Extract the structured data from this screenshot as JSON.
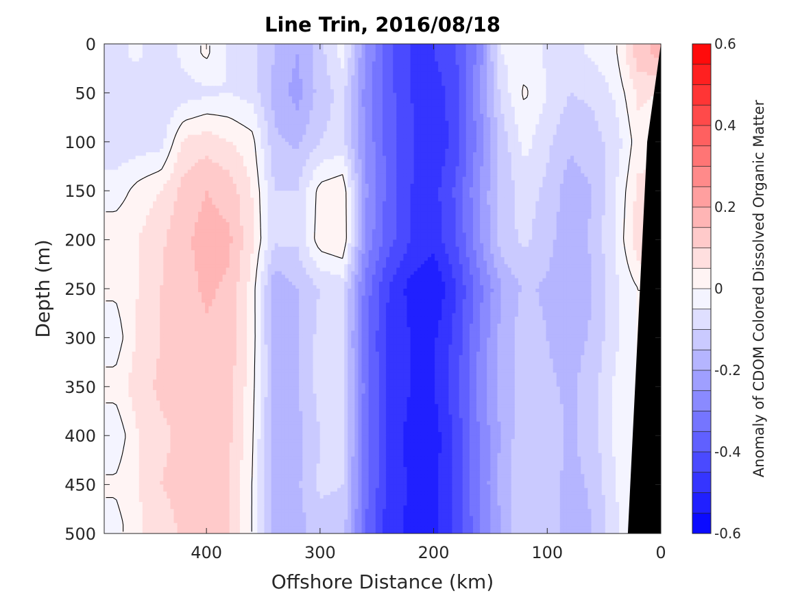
{
  "chart_data": {
    "type": "heatmap",
    "title": "Line Trin, 2016/08/18",
    "xlabel": "Offshore Distance (km)",
    "ylabel": "Depth (m)",
    "xlim": [
      490,
      0
    ],
    "x_reversed": true,
    "ylim": [
      0,
      500
    ],
    "y_reversed": true,
    "x_ticks": [
      400,
      300,
      200,
      100,
      0
    ],
    "x_tick_labels": [
      "400",
      "300",
      "200",
      "100",
      "0"
    ],
    "y_ticks": [
      0,
      50,
      100,
      150,
      200,
      250,
      300,
      350,
      400,
      450,
      500
    ],
    "y_tick_labels": [
      "0",
      "50",
      "100",
      "150",
      "200",
      "250",
      "300",
      "350",
      "400",
      "450",
      "500"
    ],
    "colorbar": {
      "label": "Anomaly of CDOM Colored Dissolved Organic Matter",
      "range": [
        -0.6,
        0.6
      ],
      "ticks": [
        0.6,
        0.4,
        0.2,
        0,
        -0.2,
        -0.4,
        -0.6
      ],
      "tick_labels": [
        "0.6",
        "0.4",
        "0.2",
        "0",
        "-0.2",
        "-0.4",
        "-0.6"
      ],
      "levels": 24,
      "colormap": "blue-white-red"
    },
    "zero_contour_color": "#000000",
    "bottom_mask_color": "#000000",
    "x_samples_km": [
      480,
      460,
      440,
      420,
      400,
      380,
      360,
      340,
      320,
      300,
      280,
      260,
      240,
      220,
      200,
      180,
      160,
      140,
      120,
      100,
      80,
      60,
      40,
      20,
      5
    ],
    "depth_samples_m": [
      10,
      50,
      100,
      150,
      200,
      250,
      300,
      350,
      400,
      450,
      490
    ],
    "anomaly_grid": [
      [
        -0.06,
        -0.04,
        -0.1,
        -0.03,
        0.01,
        -0.06,
        -0.08,
        -0.15,
        -0.2,
        -0.12,
        -0.03,
        -0.25,
        -0.38,
        -0.45,
        -0.45,
        -0.4,
        -0.28,
        -0.05,
        -0.02,
        -0.06,
        -0.07,
        -0.04,
        -0.01,
        0.13,
        0.16
      ],
      [
        -0.07,
        -0.08,
        -0.1,
        -0.08,
        -0.06,
        -0.05,
        -0.07,
        -0.17,
        -0.22,
        -0.13,
        -0.08,
        -0.27,
        -0.38,
        -0.45,
        -0.48,
        -0.42,
        -0.26,
        -0.08,
        0.01,
        -0.05,
        -0.1,
        -0.09,
        -0.04,
        0.06,
        0.05
      ],
      [
        -0.08,
        -0.08,
        -0.07,
        0.06,
        0.08,
        0.05,
        0.02,
        -0.14,
        -0.16,
        -0.1,
        -0.08,
        -0.26,
        -0.37,
        -0.44,
        -0.5,
        -0.42,
        -0.28,
        -0.13,
        -0.03,
        -0.09,
        -0.14,
        -0.12,
        -0.08,
        0.03,
        0.03
      ],
      [
        -0.03,
        0.02,
        0.05,
        0.12,
        0.15,
        0.13,
        0.05,
        -0.1,
        -0.1,
        0.02,
        0.04,
        -0.24,
        -0.37,
        -0.45,
        -0.47,
        -0.39,
        -0.25,
        -0.13,
        -0.08,
        -0.11,
        -0.18,
        -0.15,
        -0.05,
        0.06,
        0.07
      ],
      [
        0.04,
        0.05,
        0.09,
        0.14,
        0.17,
        0.16,
        0.06,
        -0.09,
        -0.09,
        0.03,
        0.05,
        -0.26,
        -0.38,
        -0.45,
        -0.48,
        -0.4,
        -0.26,
        -0.12,
        -0.09,
        -0.13,
        -0.19,
        -0.14,
        -0.05,
        0.09,
        0.11
      ],
      [
        0.01,
        0.05,
        0.1,
        0.13,
        0.16,
        0.14,
        0.03,
        -0.19,
        -0.15,
        -0.1,
        -0.08,
        -0.32,
        -0.45,
        -0.52,
        -0.55,
        -0.45,
        -0.32,
        -0.2,
        -0.14,
        -0.16,
        -0.2,
        -0.15,
        -0.06,
        0.0,
        0.0
      ],
      [
        -0.03,
        0.06,
        0.1,
        0.12,
        0.14,
        0.13,
        0.03,
        -0.18,
        -0.16,
        -0.08,
        -0.09,
        -0.34,
        -0.46,
        -0.5,
        -0.51,
        -0.43,
        -0.3,
        -0.18,
        -0.12,
        -0.15,
        -0.18,
        -0.14,
        -0.06,
        0.0,
        0.0
      ],
      [
        0.02,
        0.08,
        0.11,
        0.12,
        0.14,
        0.12,
        0.02,
        -0.17,
        -0.15,
        -0.08,
        -0.09,
        -0.32,
        -0.46,
        -0.5,
        -0.5,
        -0.42,
        -0.28,
        -0.18,
        -0.13,
        -0.14,
        -0.16,
        -0.12,
        -0.04,
        0.0,
        0.0
      ],
      [
        -0.04,
        0.05,
        0.09,
        0.11,
        0.14,
        0.11,
        0.01,
        -0.18,
        -0.17,
        -0.1,
        -0.09,
        -0.33,
        -0.46,
        -0.52,
        -0.53,
        -0.43,
        -0.3,
        -0.19,
        -0.11,
        -0.12,
        -0.16,
        -0.12,
        -0.04,
        0.0,
        0.0
      ],
      [
        0.01,
        0.05,
        0.1,
        0.12,
        0.14,
        0.1,
        0.0,
        -0.17,
        -0.16,
        -0.09,
        -0.1,
        -0.33,
        -0.46,
        -0.51,
        -0.52,
        -0.43,
        -0.3,
        -0.18,
        -0.1,
        -0.12,
        -0.17,
        -0.14,
        -0.05,
        0.0,
        0.0
      ],
      [
        -0.02,
        0.04,
        0.08,
        0.11,
        0.13,
        0.1,
        0.0,
        -0.18,
        -0.17,
        -0.12,
        -0.12,
        -0.35,
        -0.48,
        -0.51,
        -0.52,
        -0.43,
        -0.31,
        -0.19,
        -0.1,
        -0.12,
        -0.18,
        -0.15,
        -0.06,
        0.0,
        0.0
      ]
    ]
  }
}
